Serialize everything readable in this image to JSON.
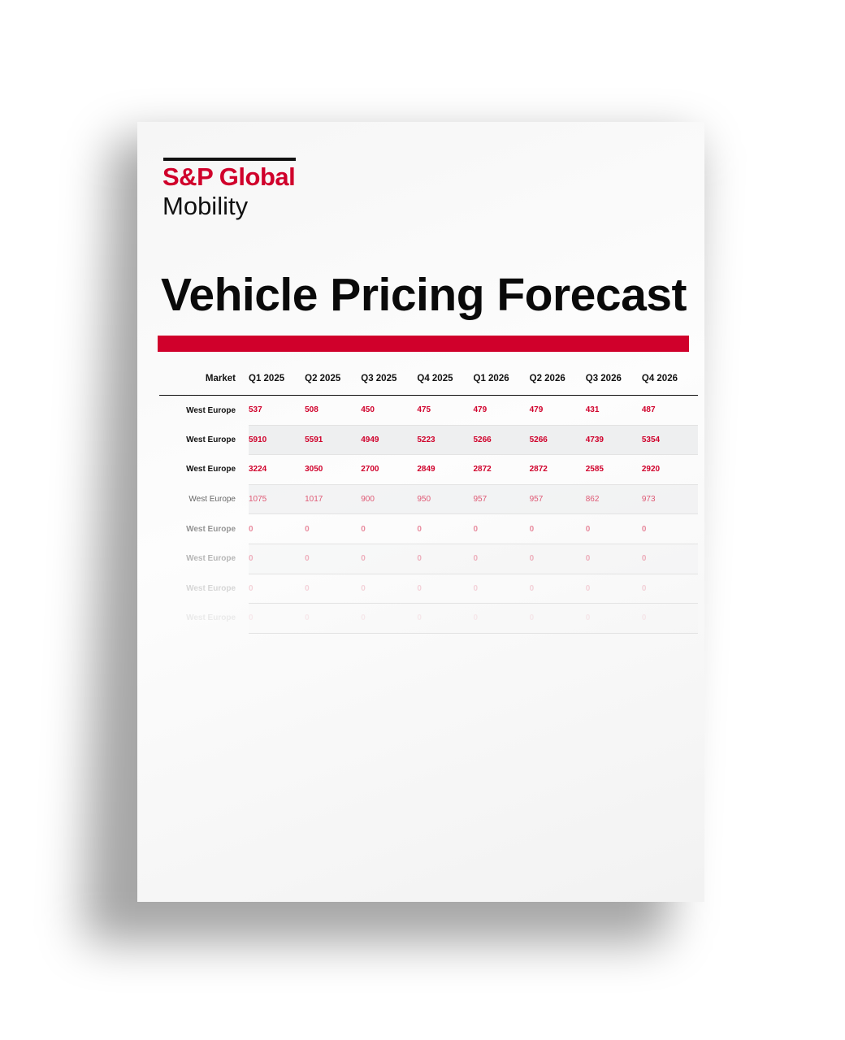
{
  "logo": {
    "line1": "S&P Global",
    "line2": "Mobility"
  },
  "title": "Vehicle Pricing Forecast",
  "table": {
    "headers": [
      "Market",
      "Q1 2025",
      "Q2 2025",
      "Q3 2025",
      "Q4 2025",
      "Q1 2026",
      "Q2 2026",
      "Q3 2026",
      "Q4 2026"
    ],
    "rows": [
      [
        "West Europe",
        "537",
        "508",
        "450",
        "475",
        "479",
        "479",
        "431",
        "487"
      ],
      [
        "West Europe",
        "5910",
        "5591",
        "4949",
        "5223",
        "5266",
        "5266",
        "4739",
        "5354"
      ],
      [
        "West Europe",
        "3224",
        "3050",
        "2700",
        "2849",
        "2872",
        "2872",
        "2585",
        "2920"
      ],
      [
        "West Europe",
        "1075",
        "1017",
        "900",
        "950",
        "957",
        "957",
        "862",
        "973"
      ],
      [
        "West Europe",
        "0",
        "0",
        "0",
        "0",
        "0",
        "0",
        "0",
        "0"
      ],
      [
        "West Europe",
        "0",
        "0",
        "0",
        "0",
        "0",
        "0",
        "0",
        "0"
      ],
      [
        "West Europe",
        "0",
        "0",
        "0",
        "0",
        "0",
        "0",
        "0",
        "0"
      ],
      [
        "West Europe",
        "0",
        "0",
        "0",
        "0",
        "0",
        "0",
        "0",
        "0"
      ]
    ]
  },
  "colors": {
    "accent": "#d0002b"
  }
}
